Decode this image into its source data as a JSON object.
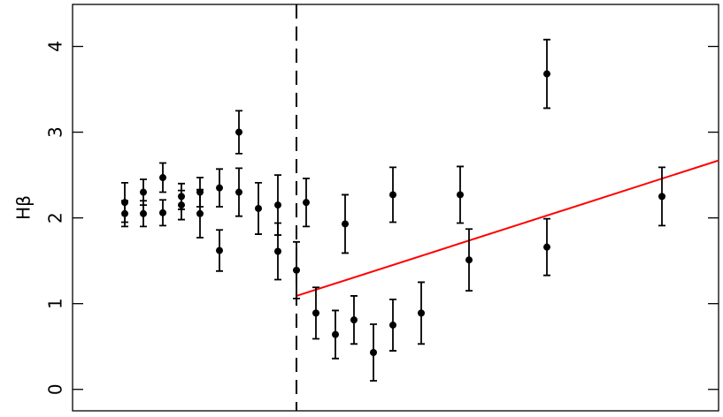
{
  "chart_data": {
    "type": "scatter",
    "y_label": "Hβ",
    "xlim": [
      0,
      730
    ],
    "ylim": [
      -0.25,
      4.49
    ],
    "yticks": [
      0,
      1,
      2,
      3,
      4
    ],
    "series": [
      {
        "color": "#000000",
        "x": [
          59,
          59,
          80,
          80,
          102,
          102,
          123,
          123,
          144,
          144,
          166,
          166,
          188,
          188,
          210,
          232,
          232,
          253,
          264,
          275,
          297,
          308,
          318,
          340,
          362,
          362,
          394,
          438,
          448,
          536,
          536,
          666
        ],
        "values": [
          2.18,
          2.05,
          2.3,
          2.05,
          2.47,
          2.06,
          2.25,
          2.15,
          2.3,
          2.05,
          2.35,
          1.62,
          3.0,
          2.3,
          2.11,
          2.15,
          1.61,
          1.39,
          2.18,
          0.89,
          0.64,
          1.93,
          0.81,
          0.43,
          2.27,
          0.75,
          0.89,
          2.27,
          1.51,
          3.68,
          1.66,
          2.25
        ],
        "errors": [
          0.23,
          0.15,
          0.15,
          0.15,
          0.17,
          0.15,
          0.15,
          0.17,
          0.17,
          0.28,
          0.22,
          0.24,
          0.25,
          0.28,
          0.3,
          0.35,
          0.33,
          0.33,
          0.28,
          0.3,
          0.28,
          0.34,
          0.28,
          0.33,
          0.32,
          0.3,
          0.36,
          0.33,
          0.36,
          0.4,
          0.33,
          0.34
        ]
      }
    ],
    "fit_line": {
      "color": "#ff0000",
      "x": [
        253,
        730
      ],
      "y": [
        1.09,
        2.67
      ]
    },
    "vline": {
      "x": 253,
      "style": "dashed"
    }
  }
}
